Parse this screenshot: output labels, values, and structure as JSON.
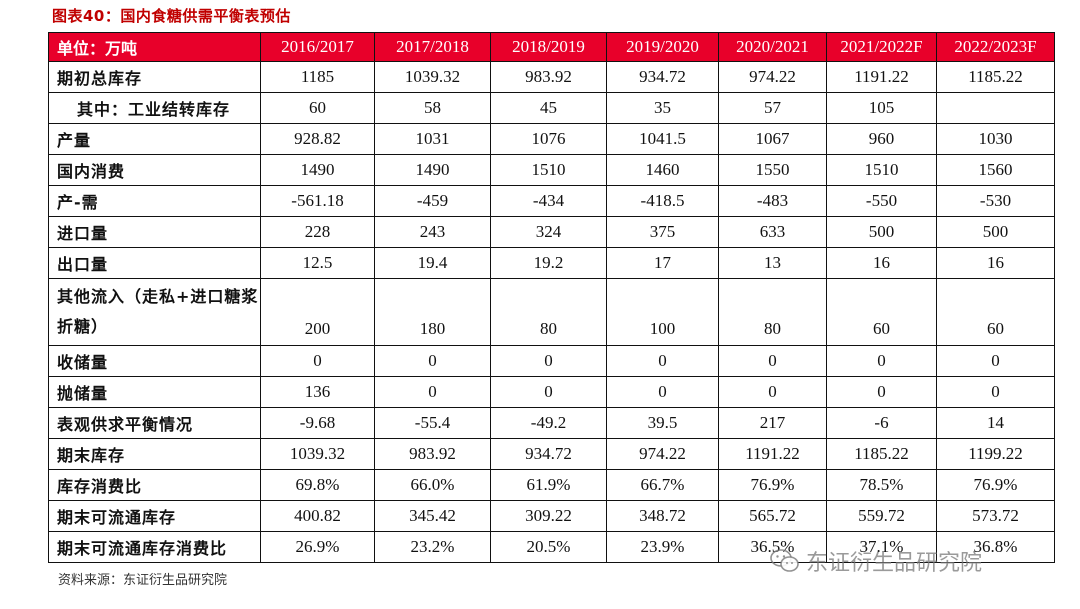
{
  "title": "图表40：国内食糖供需平衡表预估",
  "header": {
    "unit_label": "单位：万吨",
    "years": [
      "2016/2017",
      "2017/2018",
      "2018/2019",
      "2019/2020",
      "2020/2021",
      "2021/2022F",
      "2022/2023F"
    ]
  },
  "rows": [
    {
      "label": "期初总库存",
      "values": [
        "1185",
        "1039.32",
        "983.92",
        "934.72",
        "974.22",
        "1191.22",
        "1185.22"
      ]
    },
    {
      "label": "其中：工业结转库存",
      "values": [
        "60",
        "58",
        "45",
        "35",
        "57",
        "105",
        ""
      ]
    },
    {
      "label": "产量",
      "values": [
        "928.82",
        "1031",
        "1076",
        "1041.5",
        "1067",
        "960",
        "1030"
      ]
    },
    {
      "label": "国内消费",
      "values": [
        "1490",
        "1490",
        "1510",
        "1460",
        "1550",
        "1510",
        "1560"
      ]
    },
    {
      "label": "产-需",
      "values": [
        "-561.18",
        "-459",
        "-434",
        "-418.5",
        "-483",
        "-550",
        "-530"
      ]
    },
    {
      "label": "进口量",
      "values": [
        "228",
        "243",
        "324",
        "375",
        "633",
        "500",
        "500"
      ]
    },
    {
      "label": "出口量",
      "values": [
        "12.5",
        "19.4",
        "19.2",
        "17",
        "13",
        "16",
        "16"
      ]
    },
    {
      "label": "其他流入（走私+进口糖浆折糖）",
      "values": [
        "200",
        "180",
        "80",
        "100",
        "80",
        "60",
        "60"
      ]
    },
    {
      "label": "收储量",
      "values": [
        "0",
        "0",
        "0",
        "0",
        "0",
        "0",
        "0"
      ]
    },
    {
      "label": "抛储量",
      "values": [
        "136",
        "0",
        "0",
        "0",
        "0",
        "0",
        "0"
      ]
    },
    {
      "label": "表观供求平衡情况",
      "values": [
        "-9.68",
        "-55.4",
        "-49.2",
        "39.5",
        "217",
        "-6",
        "14"
      ]
    },
    {
      "label": "期末库存",
      "values": [
        "1039.32",
        "983.92",
        "934.72",
        "974.22",
        "1191.22",
        "1185.22",
        "1199.22"
      ]
    },
    {
      "label": "库存消费比",
      "values": [
        "69.8%",
        "66.0%",
        "61.9%",
        "66.7%",
        "76.9%",
        "78.5%",
        "76.9%"
      ]
    },
    {
      "label": "期末可流通库存",
      "values": [
        "400.82",
        "345.42",
        "309.22",
        "348.72",
        "565.72",
        "559.72",
        "573.72"
      ]
    },
    {
      "label": "期末可流通库存消费比",
      "values": [
        "26.9%",
        "23.2%",
        "20.5%",
        "23.9%",
        "36.5%",
        "37.1%",
        "36.8%"
      ]
    }
  ],
  "source": "资料来源：东证衍生品研究院",
  "watermark": {
    "text": "东证衍生品研究院",
    "icon": "wechat-icon"
  },
  "colors": {
    "header_bg": "#e8002a",
    "title": "#c00000"
  }
}
